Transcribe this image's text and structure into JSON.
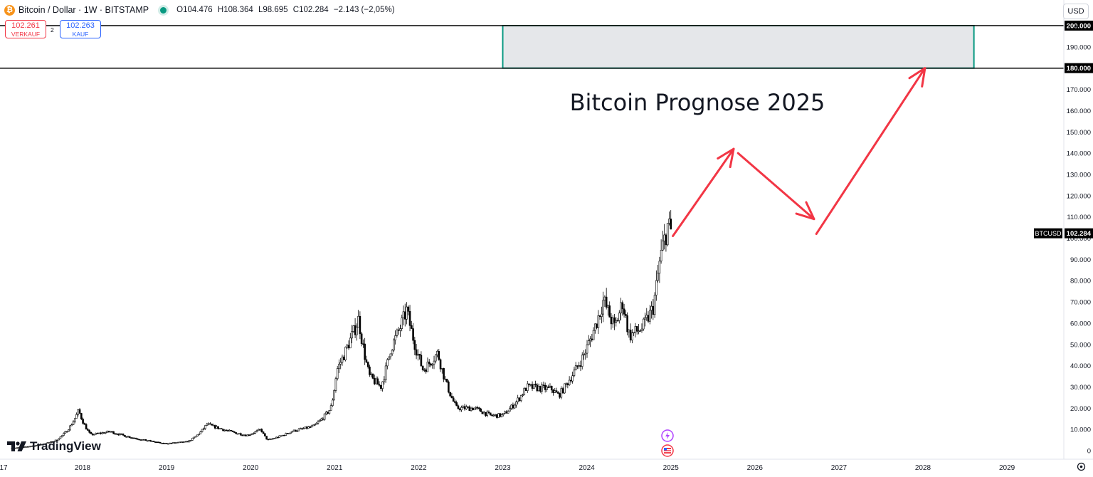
{
  "header": {
    "symbol_title": "Bitcoin / Dollar · 1W · BITSTAMP",
    "ohlc": [
      {
        "key": "O",
        "value": "104.476"
      },
      {
        "key": "H",
        "value": "108.364"
      },
      {
        "key": "L",
        "value": "98.695"
      },
      {
        "key": "C",
        "value": "102.284"
      }
    ],
    "change": "−2.143 (−2,05%)",
    "status_color": "#089981"
  },
  "trade": {
    "sell_price": "102.261",
    "sell_label": "VERKAUF",
    "spread": "2",
    "buy_price": "102.263",
    "buy_label": "KAUF"
  },
  "currency": "USD",
  "annotation_title": "Bitcoin Prognose 2025",
  "last_price_label": {
    "symbol": "BTCUSD",
    "price": "102.284"
  },
  "brand": "TradingView",
  "colors": {
    "candle": "#000000",
    "arrow": "#f23645",
    "zone_fill": "#e5e7ea",
    "zone_border": "#089981"
  },
  "chart_data": {
    "type": "candlestick",
    "interval": "1W",
    "title": "Bitcoin / Dollar · 1W · BITSTAMP",
    "x_ticks": [
      "17",
      "2018",
      "2019",
      "2020",
      "2021",
      "2022",
      "2023",
      "2024",
      "2025",
      "2026",
      "2027",
      "2028",
      "2029"
    ],
    "y_ticks": [
      "0",
      "10.000",
      "20.000",
      "30.000",
      "40.000",
      "50.000",
      "60.000",
      "70.000",
      "80.000",
      "90.000",
      "100.000",
      "110.000",
      "120.000",
      "130.000",
      "140.000",
      "150.000",
      "160.000",
      "170.000",
      "180.000",
      "190.000",
      "200.000"
    ],
    "ylim": [
      0,
      200000
    ],
    "highlighted_levels": [
      "180.000",
      "200.000"
    ],
    "price_path": [
      [
        "2017-03-01",
        1200
      ],
      [
        "2017-09-01",
        4500
      ],
      [
        "2017-12-15",
        19000
      ],
      [
        "2018-02-05",
        7500
      ],
      [
        "2018-05-01",
        9000
      ],
      [
        "2018-11-20",
        4000
      ],
      [
        "2018-12-15",
        3300
      ],
      [
        "2019-04-01",
        4200
      ],
      [
        "2019-06-25",
        12500
      ],
      [
        "2019-09-01",
        10000
      ],
      [
        "2019-12-15",
        7200
      ],
      [
        "2020-02-15",
        10000
      ],
      [
        "2020-03-15",
        5000
      ],
      [
        "2020-07-01",
        9200
      ],
      [
        "2020-10-01",
        11500
      ],
      [
        "2020-12-15",
        20000
      ],
      [
        "2021-01-10",
        38000
      ],
      [
        "2021-03-01",
        50000
      ],
      [
        "2021-04-15",
        62000
      ],
      [
        "2021-06-01",
        35000
      ],
      [
        "2021-07-20",
        30000
      ],
      [
        "2021-09-01",
        48000
      ],
      [
        "2021-11-10",
        66000
      ],
      [
        "2022-01-20",
        38000
      ],
      [
        "2022-03-25",
        46000
      ],
      [
        "2022-06-15",
        20000
      ],
      [
        "2022-09-01",
        20000
      ],
      [
        "2022-11-10",
        16500
      ],
      [
        "2022-12-31",
        16600
      ],
      [
        "2023-03-01",
        23000
      ],
      [
        "2023-04-15",
        30000
      ],
      [
        "2023-08-01",
        29000
      ],
      [
        "2023-09-01",
        26000
      ],
      [
        "2023-10-20",
        34000
      ],
      [
        "2023-12-10",
        43000
      ],
      [
        "2024-03-14",
        71000
      ],
      [
        "2024-05-01",
        58000
      ],
      [
        "2024-06-05",
        70000
      ],
      [
        "2024-07-05",
        54000
      ],
      [
        "2024-09-01",
        58000
      ],
      [
        "2024-10-15",
        67000
      ],
      [
        "2024-11-15",
        90000
      ],
      [
        "2024-12-17",
        106000
      ],
      [
        "2025-01-05",
        102284
      ]
    ],
    "last_price": 102284,
    "forecast_arrows": [
      {
        "from": [
          "2025-01-10",
          101000
        ],
        "to": [
          "2025-10-01",
          142000
        ]
      },
      {
        "from": [
          "2025-10-20",
          140000
        ],
        "to": [
          "2026-09-15",
          109000
        ]
      },
      {
        "from": [
          "2026-09-25",
          102000
        ],
        "to": [
          "2028-01-10",
          180000
        ]
      }
    ],
    "target_zone": {
      "x_start": "2023-01-01",
      "x_end": "2028-08-10",
      "y_low": 180000,
      "y_high": 200000
    }
  }
}
